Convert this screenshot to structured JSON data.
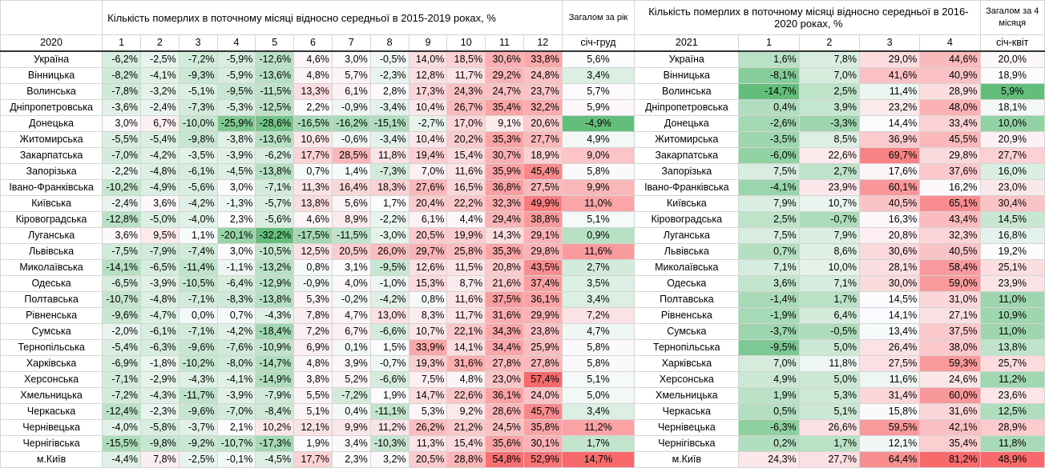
{
  "left": {
    "title": "Кількість померлих в поточному місяці відносно середньої в 2015-2019 роках, %",
    "total_title": "Загалом за рік",
    "year": "2020",
    "months": [
      "1",
      "2",
      "3",
      "4",
      "5",
      "6",
      "7",
      "8",
      "9",
      "10",
      "11",
      "12"
    ],
    "total_label": "січ-груд"
  },
  "right": {
    "title": "Кількість померлих в поточному місяці відносно середньої в 2016-2020 роках, %",
    "total_title": "Загалом за 4 місяця",
    "year": "2021",
    "months": [
      "1",
      "2",
      "3",
      "4"
    ],
    "total_label": "січ-квіт"
  },
  "rows": [
    {
      "region": "Україна",
      "v2020": [
        "-6,2%",
        "-2,5%",
        "-7,2%",
        "-5,9%",
        "-12,6%",
        "4,6%",
        "3,0%",
        "-0,5%",
        "14,0%",
        "18,5%",
        "30,6%",
        "33,8%"
      ],
      "total2020": "5,6%",
      "v2021": [
        "1,6%",
        "7,8%",
        "29,0%",
        "44,6%"
      ],
      "total2021": "20,0%"
    },
    {
      "region": "Вінницька",
      "v2020": [
        "-8,2%",
        "-4,1%",
        "-9,3%",
        "-5,9%",
        "-13,6%",
        "4,8%",
        "5,7%",
        "-2,3%",
        "12,8%",
        "11,7%",
        "29,2%",
        "24,8%"
      ],
      "total2020": "3,4%",
      "v2021": [
        "-8,1%",
        "7,0%",
        "41,6%",
        "40,9%"
      ],
      "total2021": "18,9%"
    },
    {
      "region": "Волинська",
      "v2020": [
        "-7,8%",
        "-3,2%",
        "-5,1%",
        "-9,5%",
        "-11,5%",
        "13,3%",
        "6,1%",
        "2,8%",
        "17,3%",
        "24,3%",
        "24,7%",
        "23,7%"
      ],
      "total2020": "5,7%",
      "v2021": [
        "-14,7%",
        "2,5%",
        "11,4%",
        "28,9%"
      ],
      "total2021": "5,9%"
    },
    {
      "region": "Дніпропетровська",
      "v2020": [
        "-3,6%",
        "-2,4%",
        "-7,3%",
        "-5,3%",
        "-12,5%",
        "2,2%",
        "-0,9%",
        "-3,4%",
        "10,4%",
        "26,7%",
        "35,4%",
        "32,2%"
      ],
      "total2020": "5,9%",
      "v2021": [
        "0,4%",
        "3,9%",
        "23,2%",
        "48,0%"
      ],
      "total2021": "18,1%"
    },
    {
      "region": "Донецька",
      "v2020": [
        "3,0%",
        "6,7%",
        "-10,0%",
        "-25,9%",
        "-28,6%",
        "-16,5%",
        "-16,2%",
        "-15,1%",
        "-2,7%",
        "17,0%",
        "9,1%",
        "20,6%"
      ],
      "total2020": "-4,9%",
      "v2021": [
        "-2,6%",
        "-3,3%",
        "14,4%",
        "33,4%"
      ],
      "total2021": "10,0%"
    },
    {
      "region": "Житомирська",
      "v2020": [
        "-5,5%",
        "-5,4%",
        "-9,8%",
        "-3,8%",
        "-13,6%",
        "10,6%",
        "-0,6%",
        "-3,4%",
        "10,4%",
        "20,2%",
        "35,3%",
        "27,7%"
      ],
      "total2020": "4,9%",
      "v2021": [
        "-3,5%",
        "8,5%",
        "36,9%",
        "45,5%"
      ],
      "total2021": "20,9%"
    },
    {
      "region": "Закарпатська",
      "v2020": [
        "-7,0%",
        "-4,2%",
        "-3,5%",
        "-3,9%",
        "-6,2%",
        "17,7%",
        "28,5%",
        "11,8%",
        "19,4%",
        "15,4%",
        "30,7%",
        "18,9%"
      ],
      "total2020": "9,0%",
      "v2021": [
        "-6,0%",
        "22,6%",
        "69,7%",
        "29,8%"
      ],
      "total2021": "27,7%"
    },
    {
      "region": "Запорізька",
      "v2020": [
        "-2,2%",
        "-4,8%",
        "-6,1%",
        "-4,5%",
        "-13,8%",
        "0,7%",
        "1,4%",
        "-7,3%",
        "7,0%",
        "11,6%",
        "35,9%",
        "45,4%"
      ],
      "total2020": "5,8%",
      "v2021": [
        "7,5%",
        "2,7%",
        "17,6%",
        "37,6%"
      ],
      "total2021": "16,0%"
    },
    {
      "region": "Івано-Франківська",
      "v2020": [
        "-10,2%",
        "-4,9%",
        "-5,6%",
        "3,0%",
        "-7,1%",
        "11,3%",
        "16,4%",
        "18,3%",
        "27,6%",
        "16,5%",
        "36,8%",
        "27,5%"
      ],
      "total2020": "9,9%",
      "v2021": [
        "-4,1%",
        "23,9%",
        "60,1%",
        "16,2%"
      ],
      "total2021": "23,0%"
    },
    {
      "region": "Київська",
      "v2020": [
        "-2,4%",
        "3,6%",
        "-4,2%",
        "-1,3%",
        "-5,7%",
        "13,8%",
        "5,6%",
        "1,7%",
        "20,4%",
        "22,2%",
        "32,3%",
        "49,9%"
      ],
      "total2020": "11,0%",
      "v2021": [
        "7,9%",
        "10,7%",
        "40,5%",
        "65,1%"
      ],
      "total2021": "30,4%"
    },
    {
      "region": "Кіровоградська",
      "v2020": [
        "-12,8%",
        "-5,0%",
        "-4,0%",
        "2,3%",
        "-5,6%",
        "4,6%",
        "8,9%",
        "-2,2%",
        "6,1%",
        "4,4%",
        "29,4%",
        "38,8%"
      ],
      "total2020": "5,1%",
      "v2021": [
        "2,5%",
        "-0,7%",
        "16,3%",
        "43,4%"
      ],
      "total2021": "14,5%"
    },
    {
      "region": "Луганська",
      "v2020": [
        "3,6%",
        "9,5%",
        "1,1%",
        "-20,1%",
        "-32,2%",
        "-17,5%",
        "-11,5%",
        "-3,0%",
        "20,5%",
        "19,9%",
        "14,3%",
        "29,1%"
      ],
      "total2020": "0,9%",
      "v2021": [
        "7,5%",
        "7,9%",
        "20,8%",
        "32,3%"
      ],
      "total2021": "16,8%"
    },
    {
      "region": "Львівська",
      "v2020": [
        "-7,5%",
        "-7,9%",
        "-7,4%",
        "3,0%",
        "-10,5%",
        "12,5%",
        "20,5%",
        "26,0%",
        "29,7%",
        "25,8%",
        "35,3%",
        "29,8%"
      ],
      "total2020": "11,6%",
      "v2021": [
        "0,7%",
        "8,6%",
        "30,6%",
        "40,5%"
      ],
      "total2021": "19,2%"
    },
    {
      "region": "Миколаївська",
      "v2020": [
        "-14,1%",
        "-6,5%",
        "-11,4%",
        "-1,1%",
        "-13,2%",
        "0,8%",
        "3,1%",
        "-9,5%",
        "12,6%",
        "11,5%",
        "20,8%",
        "43,5%"
      ],
      "total2020": "2,7%",
      "v2021": [
        "7,1%",
        "10,0%",
        "28,1%",
        "58,4%"
      ],
      "total2021": "25,1%"
    },
    {
      "region": "Одеська",
      "v2020": [
        "-6,5%",
        "-3,9%",
        "-10,5%",
        "-6,4%",
        "-12,9%",
        "-0,9%",
        "4,0%",
        "-1,0%",
        "15,3%",
        "8,7%",
        "21,6%",
        "37,4%"
      ],
      "total2020": "3,5%",
      "v2021": [
        "3,6%",
        "7,1%",
        "30,0%",
        "59,0%"
      ],
      "total2021": "23,9%"
    },
    {
      "region": "Полтавська",
      "v2020": [
        "-10,7%",
        "-4,8%",
        "-7,1%",
        "-8,3%",
        "-13,8%",
        "5,3%",
        "-0,2%",
        "-4,2%",
        "0,8%",
        "11,6%",
        "37,5%",
        "36,1%"
      ],
      "total2020": "3,4%",
      "v2021": [
        "-1,4%",
        "1,7%",
        "14,5%",
        "31,0%"
      ],
      "total2021": "11,0%"
    },
    {
      "region": "Рівненська",
      "v2020": [
        "-9,6%",
        "-4,7%",
        "0,0%",
        "0,7%",
        "-4,3%",
        "7,8%",
        "4,7%",
        "13,0%",
        "8,3%",
        "11,7%",
        "31,6%",
        "29,9%"
      ],
      "total2020": "7,2%",
      "v2021": [
        "-1,9%",
        "6,4%",
        "14,1%",
        "27,1%"
      ],
      "total2021": "10,9%"
    },
    {
      "region": "Сумська",
      "v2020": [
        "-2,0%",
        "-6,1%",
        "-7,1%",
        "-4,2%",
        "-18,4%",
        "7,2%",
        "6,7%",
        "-6,6%",
        "10,7%",
        "22,1%",
        "34,3%",
        "23,8%"
      ],
      "total2020": "4,7%",
      "v2021": [
        "-3,7%",
        "-0,5%",
        "13,4%",
        "37,5%"
      ],
      "total2021": "11,0%"
    },
    {
      "region": "Тернопільська",
      "v2020": [
        "-5,4%",
        "-6,3%",
        "-9,6%",
        "-7,6%",
        "-10,9%",
        "6,9%",
        "0,1%",
        "1,5%",
        "33,9%",
        "14,1%",
        "34,4%",
        "25,9%"
      ],
      "total2020": "5,8%",
      "v2021": [
        "-9,5%",
        "5,0%",
        "26,4%",
        "38,0%"
      ],
      "total2021": "13,8%"
    },
    {
      "region": "Харківська",
      "v2020": [
        "-6,9%",
        "-1,8%",
        "-10,2%",
        "-8,0%",
        "-14,7%",
        "4,8%",
        "3,9%",
        "-0,7%",
        "19,3%",
        "31,6%",
        "27,8%",
        "27,8%"
      ],
      "total2020": "5,8%",
      "v2021": [
        "7,0%",
        "11,8%",
        "27,5%",
        "59,3%"
      ],
      "total2021": "25,7%"
    },
    {
      "region": "Херсонська",
      "v2020": [
        "-7,1%",
        "-2,9%",
        "-4,3%",
        "-4,1%",
        "-14,9%",
        "3,8%",
        "5,2%",
        "-6,6%",
        "7,5%",
        "4,8%",
        "23,0%",
        "57,4%"
      ],
      "total2020": "5,1%",
      "v2021": [
        "4,9%",
        "5,0%",
        "11,6%",
        "24,6%"
      ],
      "total2021": "11,2%"
    },
    {
      "region": "Хмельницька",
      "v2020": [
        "-7,2%",
        "-4,3%",
        "-11,7%",
        "-3,9%",
        "-7,9%",
        "5,5%",
        "-7,2%",
        "1,9%",
        "14,7%",
        "22,6%",
        "36,1%",
        "24,0%"
      ],
      "total2020": "5,0%",
      "v2021": [
        "1,9%",
        "5,3%",
        "31,4%",
        "60,0%"
      ],
      "total2021": "23,6%"
    },
    {
      "region": "Черкаська",
      "v2020": [
        "-12,4%",
        "-2,3%",
        "-9,6%",
        "-7,0%",
        "-8,4%",
        "5,1%",
        "0,4%",
        "-11,1%",
        "5,3%",
        "9,2%",
        "28,6%",
        "45,7%"
      ],
      "total2020": "3,4%",
      "v2021": [
        "0,5%",
        "5,1%",
        "15,8%",
        "31,6%"
      ],
      "total2021": "12,5%"
    },
    {
      "region": "Чернівецька",
      "v2020": [
        "-4,0%",
        "-5,8%",
        "-3,7%",
        "2,1%",
        "10,2%",
        "12,1%",
        "9,9%",
        "11,2%",
        "26,2%",
        "21,2%",
        "24,5%",
        "35,8%"
      ],
      "total2020": "11,2%",
      "v2021": [
        "-6,3%",
        "26,6%",
        "59,5%",
        "42,1%"
      ],
      "total2021": "28,9%"
    },
    {
      "region": "Чернігівська",
      "v2020": [
        "-15,5%",
        "-9,8%",
        "-9,2%",
        "-10,7%",
        "-17,3%",
        "1,9%",
        "3,4%",
        "-10,3%",
        "11,3%",
        "15,4%",
        "35,6%",
        "30,1%"
      ],
      "total2020": "1,7%",
      "v2021": [
        "0,2%",
        "1,7%",
        "12,1%",
        "35,4%"
      ],
      "total2021": "11,8%"
    },
    {
      "region": "м.Київ",
      "v2020": [
        "-4,4%",
        "7,8%",
        "-2,5%",
        "-0,1%",
        "-4,5%",
        "17,7%",
        "2,3%",
        "3,2%",
        "20,5%",
        "28,8%",
        "54,8%",
        "52,9%"
      ],
      "total2020": "14,7%",
      "v2021": [
        "24,3%",
        "27,7%",
        "64,4%",
        "81,2%"
      ],
      "total2021": "48,9%"
    }
  ],
  "colors": {
    "negative_max": "#63be7b",
    "neutral": "#fcfcff",
    "positive_max": "#f8696b"
  }
}
